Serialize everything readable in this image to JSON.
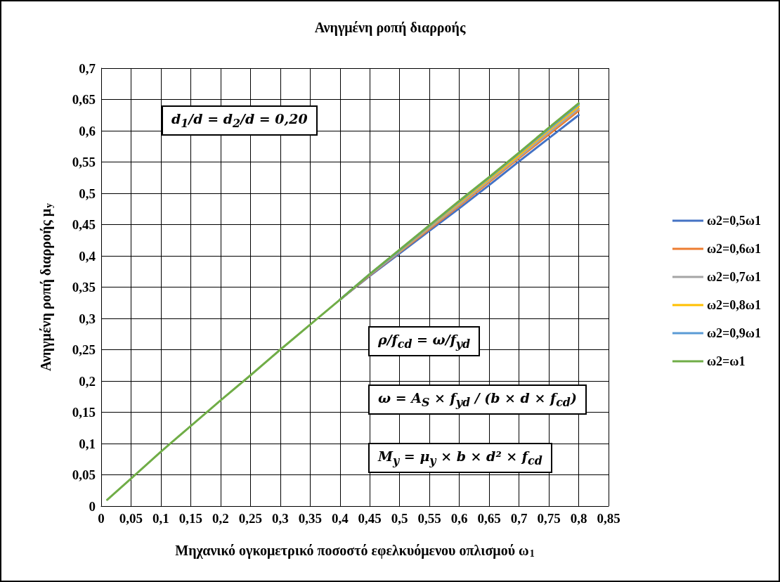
{
  "chart_data": {
    "type": "line",
    "title": "Ανηγμένη ροπή διαρροής",
    "xlabel": "Μηχανικό ογκομετρικό ποσοστό εφελκυόμενου οπλισμού ω$_{1}$",
    "ylabel": "Ανηγμένη ροπή διαρροής μ$_{y}$",
    "x": [
      0.01,
      0.05,
      0.1,
      0.15,
      0.2,
      0.25,
      0.3,
      0.35,
      0.4,
      0.45,
      0.5,
      0.55,
      0.6,
      0.65,
      0.7,
      0.75,
      0.8
    ],
    "series": [
      {
        "name": "ω2=0,5ω1",
        "color": "#4472c4",
        "values": [
          null,
          null,
          null,
          null,
          null,
          null,
          null,
          null,
          0.33,
          0.368,
          0.404,
          0.44,
          0.476,
          0.513,
          0.551,
          0.588,
          0.625
        ]
      },
      {
        "name": "ω2=0,6ω1",
        "color": "#ed7d31",
        "values": [
          null,
          null,
          null,
          null,
          null,
          null,
          null,
          null,
          0.33,
          0.369,
          0.406,
          0.443,
          0.48,
          0.518,
          0.556,
          0.594,
          0.632
        ]
      },
      {
        "name": "ω2=0,7ω1",
        "color": "#a5a5a5",
        "values": [
          null,
          null,
          null,
          null,
          null,
          null,
          null,
          null,
          0.33,
          0.37,
          0.407,
          0.445,
          0.482,
          0.52,
          0.558,
          0.597,
          0.635
        ]
      },
      {
        "name": "ω2=0,8ω1",
        "color": "#ffc000",
        "values": [
          null,
          null,
          null,
          null,
          null,
          null,
          null,
          null,
          null,
          null,
          0.408,
          0.447,
          0.485,
          0.523,
          0.561,
          0.601,
          0.639
        ]
      },
      {
        "name": "ω2=0,9ω1",
        "color": "#5b9bd5",
        "values": [
          null,
          null,
          null,
          null,
          null,
          null,
          null,
          null,
          0.33,
          0.371,
          0.409,
          0.448,
          0.487,
          0.525,
          0.564,
          0.603,
          0.642
        ]
      },
      {
        "name": "ω2=ω1",
        "color": "#70ad47",
        "values": [
          0.01,
          0.044,
          0.087,
          0.128,
          0.169,
          0.209,
          0.25,
          0.29,
          0.33,
          0.371,
          0.41,
          0.449,
          0.488,
          0.526,
          0.565,
          0.605,
          0.644
        ]
      }
    ],
    "xlim": [
      0,
      0.85
    ],
    "xticks": [
      0,
      {
        "value": 0.05,
        "label": "0,05"
      },
      {
        "value": 0.1,
        "label": "0,1"
      },
      {
        "value": 0.15,
        "label": "0,15"
      },
      {
        "value": 0.2,
        "label": "0,2"
      },
      {
        "value": 0.25,
        "label": "0,25"
      },
      {
        "value": 0.3,
        "label": "0,3"
      },
      {
        "value": 0.35,
        "label": "0,35"
      },
      {
        "value": 0.4,
        "label": "0,4"
      },
      {
        "value": 0.45,
        "label": "0,45"
      },
      {
        "value": 0.5,
        "label": "0,5"
      },
      {
        "value": 0.55,
        "label": "0,55"
      },
      {
        "value": 0.6,
        "label": "0,6"
      },
      {
        "value": 0.65,
        "label": "0,65"
      },
      {
        "value": 0.7,
        "label": "0,7"
      },
      {
        "value": 0.75,
        "label": "0,75"
      },
      {
        "value": 0.8,
        "label": "0,8"
      },
      {
        "value": 0.85,
        "label": "0,85"
      }
    ],
    "ylim": [
      0,
      0.7
    ],
    "yticks": [
      0,
      {
        "value": 0.05,
        "label": "0,05"
      },
      {
        "value": 0.1,
        "label": "0,1"
      },
      {
        "value": 0.15,
        "label": "0,15"
      },
      {
        "value": 0.2,
        "label": "0,2"
      },
      {
        "value": 0.25,
        "label": "0,25"
      },
      {
        "value": 0.3,
        "label": "0,3"
      },
      {
        "value": 0.35,
        "label": "0,35"
      },
      {
        "value": 0.4,
        "label": "0,4"
      },
      {
        "value": 0.45,
        "label": "0,45"
      },
      {
        "value": 0.5,
        "label": "0,5"
      },
      {
        "value": 0.55,
        "label": "0,55"
      },
      {
        "value": 0.6,
        "label": "0,6"
      },
      {
        "value": 0.65,
        "label": "0,65"
      },
      {
        "value": 0.7,
        "label": "0,7"
      }
    ],
    "annotations": [
      "d$_{1}$/d = d$_{2}$/d = 0,20",
      "ρ/f$_{cd}$ = ω/f$_{yd}$",
      "ω = A$_{S}$ × f$_{yd}$ / (b × d × f$_{cd}$)",
      "M$_{y}$ = μ$_{y}$ × b × d² × f$_{cd}$"
    ],
    "grid": true,
    "legend": "right",
    "marker": "none",
    "line_style": "solid"
  }
}
